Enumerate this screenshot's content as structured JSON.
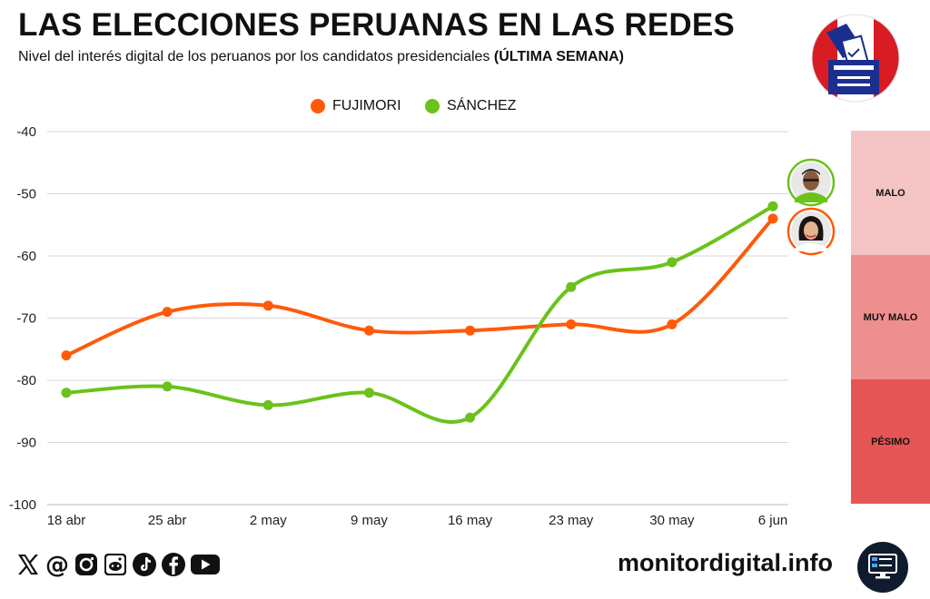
{
  "header": {
    "title": "LAS ELECCIONES PERUANAS EN LAS REDES",
    "subtitle": "Nivel del interés digital de los peruanos por los candidatos presidenciales",
    "subtitle_emphasis": "(ÚLTIMA SEMANA)"
  },
  "colors": {
    "fujimori": "#ff5a0a",
    "sanchez": "#6ac21a",
    "zone_malo": "#f4c3c3",
    "zone_muy_malo": "#ee8e8e",
    "zone_pesimo": "#e65555",
    "grid": "#d9d9d9"
  },
  "chart_data": {
    "type": "line",
    "categories": [
      "18 abr",
      "25 abr",
      "2 may",
      "9 may",
      "16 may",
      "23 may",
      "30 may",
      "6 jun"
    ],
    "series": [
      {
        "name": "FUJIMORI",
        "values": [
          -76,
          -69,
          -68,
          -72,
          -72,
          -71,
          -71,
          -54
        ]
      },
      {
        "name": "SÁNCHEZ",
        "values": [
          -82,
          -81,
          -84,
          -82,
          -86,
          -65,
          -61,
          -52
        ]
      }
    ],
    "ylim": [
      -100,
      -40
    ],
    "yticks": [
      -40,
      -50,
      -60,
      -70,
      -80,
      -90,
      -100
    ],
    "grid": true,
    "legend_position": "top-center",
    "smooth": true,
    "zones": [
      {
        "label": "MALO",
        "from": -60,
        "to": -40
      },
      {
        "label": "MUY MALO",
        "from": -80,
        "to": -60
      },
      {
        "label": "PÉSIMO",
        "from": -100,
        "to": -80
      }
    ]
  },
  "footer": {
    "site": "monitordigital.info",
    "social_icons": [
      "x-icon",
      "threads-icon",
      "instagram-icon",
      "reddit-icon",
      "tiktok-icon",
      "facebook-icon",
      "youtube-icon"
    ]
  }
}
